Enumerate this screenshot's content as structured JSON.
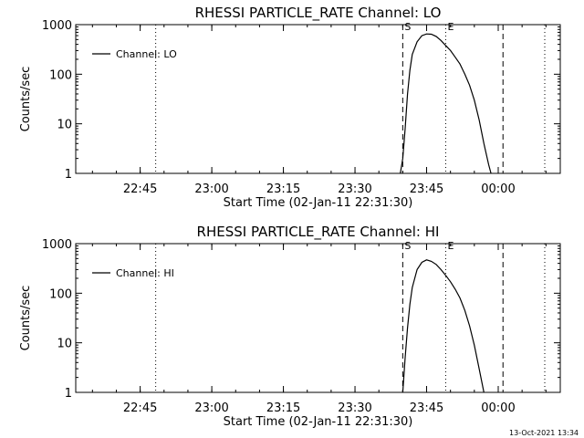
{
  "footer": {
    "timestamp": "13-Oct-2021 13:34"
  },
  "chart_data": [
    {
      "type": "line",
      "title": "RHESSI PARTICLE_RATE Channel: LO",
      "xlabel": "Start Time (02-Jan-11 22:31:30)",
      "ylabel": "Counts/sec",
      "y_scale": "log",
      "xlim": [
        "22:31:30",
        "00:13:00"
      ],
      "ylim": [
        1,
        1000
      ],
      "xticks": [
        "22:45",
        "23:00",
        "23:15",
        "23:30",
        "23:45",
        "00:00"
      ],
      "yticks": [
        "1",
        "10",
        "100",
        "1000"
      ],
      "grid": false,
      "legend_position": "top-left",
      "series": [
        {
          "name": "Channel: LO",
          "x": [
            "23:39:30",
            "23:40:00",
            "23:40:30",
            "23:41:00",
            "23:41:30",
            "23:42:00",
            "23:43:00",
            "23:44:00",
            "23:45:00",
            "23:46:00",
            "23:47:00",
            "23:48:00",
            "23:49:00",
            "23:50:00",
            "23:51:00",
            "23:52:00",
            "23:53:00",
            "23:54:00",
            "23:55:00",
            "23:56:00",
            "23:57:00",
            "23:58:00",
            "23:58:30"
          ],
          "values": [
            1.0,
            2.0,
            8,
            40,
            120,
            250,
            450,
            600,
            650,
            640,
            580,
            480,
            380,
            300,
            220,
            160,
            100,
            60,
            30,
            12,
            4,
            1.5,
            1.0
          ]
        }
      ],
      "markers": [
        {
          "label": "S",
          "time": "23:40:00",
          "style": "dashed"
        },
        {
          "label": "",
          "time": "00:01:00",
          "style": "dashed"
        },
        {
          "label": "E",
          "time": "23:49:00",
          "style": "dotted"
        },
        {
          "label": "",
          "time": "22:48:15",
          "style": "dotted"
        },
        {
          "label": "",
          "time": "00:09:45",
          "style": "dotted"
        }
      ]
    },
    {
      "type": "line",
      "title": "RHESSI PARTICLE_RATE Channel: HI",
      "xlabel": "Start Time (02-Jan-11 22:31:30)",
      "ylabel": "Counts/sec",
      "y_scale": "log",
      "xlim": [
        "22:31:30",
        "00:13:00"
      ],
      "ylim": [
        1,
        1000
      ],
      "xticks": [
        "22:45",
        "23:00",
        "23:15",
        "23:30",
        "23:45",
        "00:00"
      ],
      "yticks": [
        "1",
        "10",
        "100",
        "1000"
      ],
      "grid": false,
      "legend_position": "top-left",
      "series": [
        {
          "name": "Channel: HI",
          "x": [
            "23:40:00",
            "23:40:30",
            "23:41:00",
            "23:41:30",
            "23:42:00",
            "23:43:00",
            "23:44:00",
            "23:45:00",
            "23:46:00",
            "23:47:00",
            "23:48:00",
            "23:49:00",
            "23:50:00",
            "23:51:00",
            "23:52:00",
            "23:53:00",
            "23:54:00",
            "23:55:00",
            "23:56:00",
            "23:57:00"
          ],
          "values": [
            1.0,
            5,
            20,
            60,
            130,
            300,
            420,
            470,
            440,
            380,
            300,
            230,
            170,
            120,
            80,
            45,
            22,
            9,
            3,
            1.0
          ]
        }
      ],
      "markers": [
        {
          "label": "S",
          "time": "23:40:00",
          "style": "dashed"
        },
        {
          "label": "",
          "time": "00:01:00",
          "style": "dashed"
        },
        {
          "label": "E",
          "time": "23:49:00",
          "style": "dotted"
        },
        {
          "label": "",
          "time": "22:48:15",
          "style": "dotted"
        },
        {
          "label": "",
          "time": "00:09:45",
          "style": "dotted"
        }
      ]
    }
  ]
}
